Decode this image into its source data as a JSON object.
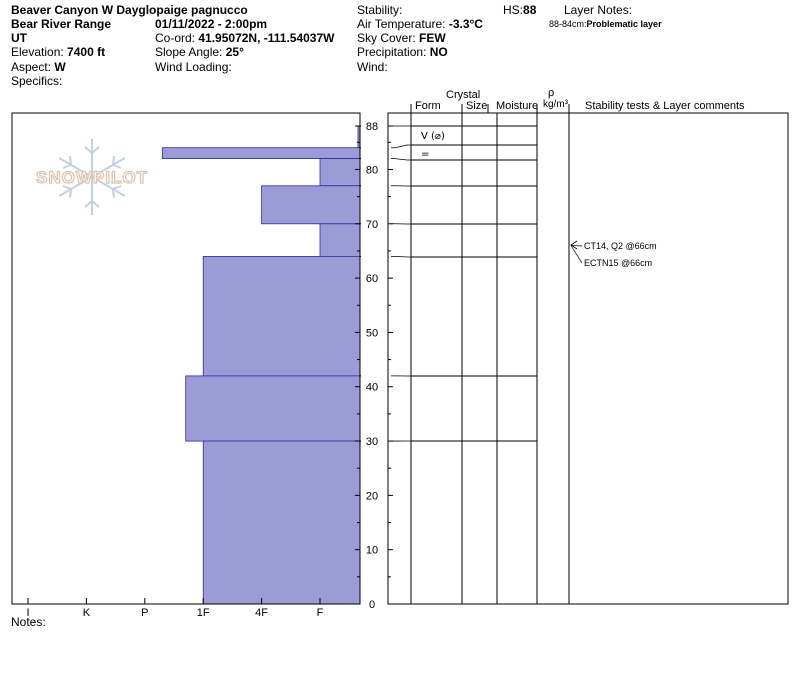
{
  "header": {
    "location": "Beaver Canyon W Dayglo",
    "observer": "paige pagnucco",
    "range": "Bear River Range",
    "state": "UT",
    "datetime": "01/11/2022 - 2:00pm",
    "elevation_label": "Elevation:",
    "elevation": "7400 ft",
    "aspect_label": "Aspect:",
    "aspect": "W",
    "specifics_label": "Specifics:",
    "coord_label": "Co-ord:",
    "coord": "41.95072N, -111.54037W",
    "slope_label": "Slope Angle:",
    "slope": "25°",
    "wind_loading_label": "Wind Loading:",
    "stability_label": "Stability:",
    "air_temp_label": "Air Temperature:",
    "air_temp": "-3.3°C",
    "sky_label": "Sky Cover:",
    "sky": "FEW",
    "precip_label": "Precipitation:",
    "precip": "NO",
    "wind_label": "Wind:",
    "hs_label": "HS:",
    "hs": "88",
    "layer_notes_label": "Layer Notes:",
    "layer_note_range": "88-84cm:",
    "layer_note_text": "Problematic layer",
    "notes_label": "Notes:"
  },
  "watermark": {
    "text": "SNOWPILOT",
    "icon": "snowflake-icon",
    "color": "#d9b8a0"
  },
  "table": {
    "crystal_label": "Crystal",
    "form_label": "Form",
    "size_label": "Size",
    "moisture_label": "Moisture",
    "rho_label": "ρ",
    "density_unit": "kg/m³",
    "comments_label": "Stability tests & Layer comments",
    "form_entries": [
      {
        "text": "V (⌀)",
        "depth": 86
      },
      {
        "text": "=",
        "depth": 82.5
      }
    ],
    "tests": [
      {
        "text": "CT14, Q2 @66cm",
        "depth": 66
      },
      {
        "text": "ECTN15 @66cm",
        "depth": 66
      }
    ]
  },
  "chart_data": {
    "type": "bar",
    "title": "",
    "xlabel": "",
    "ylabel": "",
    "ylim": [
      0,
      88
    ],
    "y_ticks": [
      0,
      10,
      20,
      30,
      40,
      50,
      60,
      70,
      80,
      88
    ],
    "hardness_scale": [
      "I",
      "K",
      "P",
      "1F",
      "4F",
      "F"
    ],
    "hardness_values": [
      0,
      1,
      2,
      3,
      4,
      5
    ],
    "layer_boundaries": [
      88,
      84,
      82,
      77,
      70,
      64,
      42,
      30,
      0
    ],
    "layers": [
      {
        "top": 88,
        "bottom": 84,
        "hardness": "F+",
        "value": 5.65
      },
      {
        "top": 84,
        "bottom": 82,
        "hardness": "P+",
        "value": 2.3
      },
      {
        "top": 82,
        "bottom": 77,
        "hardness": "F",
        "value": 5.0
      },
      {
        "top": 77,
        "bottom": 70,
        "hardness": "4F",
        "value": 4.0
      },
      {
        "top": 70,
        "bottom": 64,
        "hardness": "F",
        "value": 5.0
      },
      {
        "top": 64,
        "bottom": 42,
        "hardness": "1F",
        "value": 3.0
      },
      {
        "top": 42,
        "bottom": 30,
        "hardness": "1F-",
        "value": 2.7
      },
      {
        "top": 30,
        "bottom": 0,
        "hardness": "1F",
        "value": 3.0
      }
    ],
    "bar_color": "#9b9bd8",
    "bar_stroke": "#2c2ca0"
  }
}
